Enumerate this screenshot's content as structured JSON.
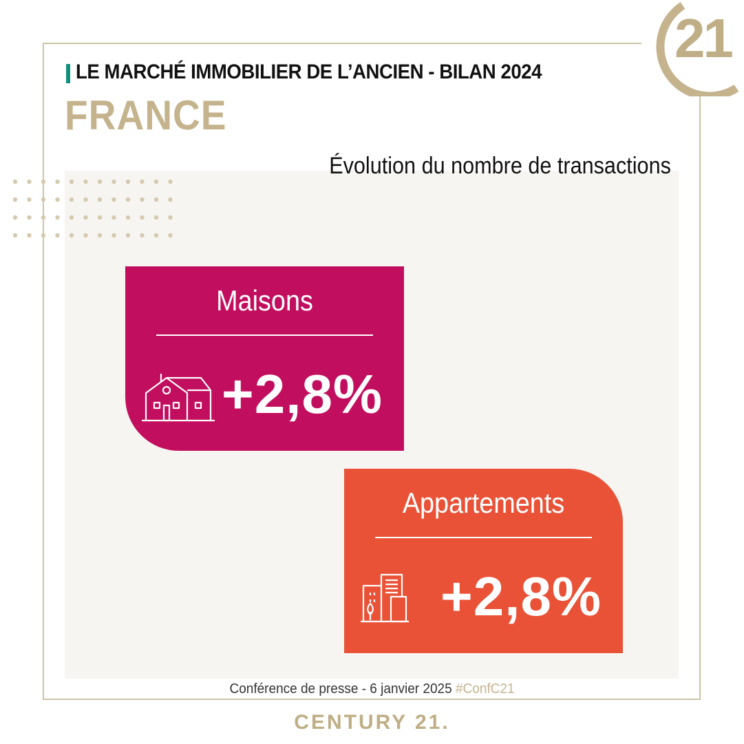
{
  "header": {
    "title": "LE MARCHÉ IMMOBILIER DE L’ANCIEN - BILAN 2024",
    "subtitle": "FRANCE"
  },
  "logo": {
    "text": "21"
  },
  "chart_heading": "Évolution du nombre de transactions",
  "cards": [
    {
      "label": "Maisons",
      "value": "+2,8%",
      "icon": "house-icon",
      "color": "#c20e5e"
    },
    {
      "label": "Appartements",
      "value": "+2,8%",
      "icon": "building-icon",
      "color": "#e95237"
    }
  ],
  "footer": {
    "text": "Conférence de presse - 6 janvier 2025",
    "hashtag": "#ConfC21"
  },
  "brand": "CENTURY 21.",
  "colors": {
    "gold": "#c4b38d",
    "teal": "#0f8f7f",
    "panel": "#f7f5f1"
  }
}
